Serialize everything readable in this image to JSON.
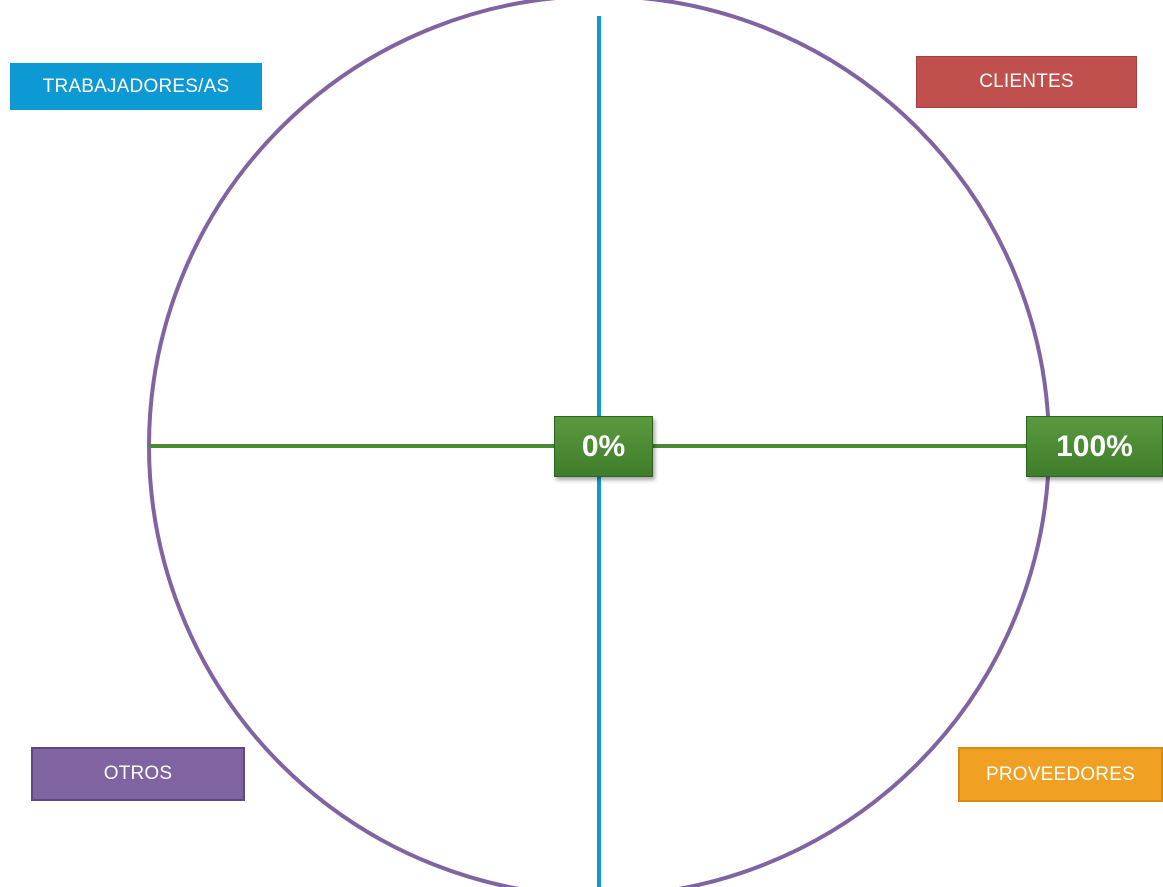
{
  "labels": {
    "top_left": "TRABAJADORES/AS",
    "top_right": "CLIENTES",
    "bottom_left": "OTROS",
    "bottom_right": "PROVEEDORES"
  },
  "scale": {
    "center": "0%",
    "edge": "100%"
  },
  "colors": {
    "circle": "#8064a2",
    "vertical_axis": "#0d99d4",
    "horizontal_axis": "#4a8a35",
    "trabajadores": "#0d99d4",
    "clientes": "#c0504d",
    "otros": "#8064a2",
    "proveedores": "#f0a022",
    "scale_badge": "#4a8a35"
  }
}
